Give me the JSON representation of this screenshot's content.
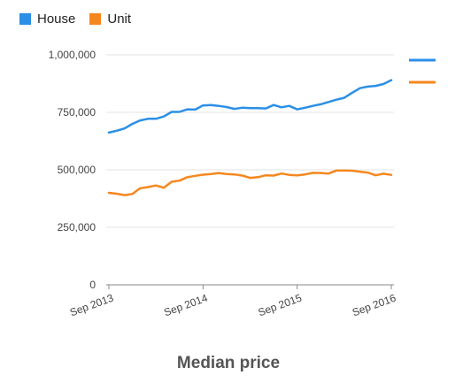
{
  "colors": {
    "house": "#2b8fe6",
    "unit": "#f5871f",
    "grid": "#e3e3e3",
    "axis": "#888888"
  },
  "chart_data": {
    "type": "line",
    "xlabel": "Median price",
    "ylabel": "",
    "ylim": [
      0,
      1000000
    ],
    "y_ticks": [
      0,
      250000,
      500000,
      750000,
      1000000
    ],
    "y_tick_labels": [
      "0",
      "250,000",
      "500,000",
      "750,000",
      "1,000,000"
    ],
    "x_tick_labels": [
      "Sep 2013",
      "Sep 2014",
      "Sep 2015",
      "Sep 2016"
    ],
    "grid": true,
    "legend": {
      "placement": "top-left",
      "entries": [
        "House",
        "Unit"
      ]
    },
    "x": [
      "Sep 2013",
      "Oct 2013",
      "Nov 2013",
      "Dec 2013",
      "Jan 2014",
      "Feb 2014",
      "Mar 2014",
      "Apr 2014",
      "May 2014",
      "Jun 2014",
      "Jul 2014",
      "Aug 2014",
      "Sep 2014",
      "Oct 2014",
      "Nov 2014",
      "Dec 2014",
      "Jan 2015",
      "Feb 2015",
      "Mar 2015",
      "Apr 2015",
      "May 2015",
      "Jun 2015",
      "Jul 2015",
      "Aug 2015",
      "Sep 2015",
      "Oct 2015",
      "Nov 2015",
      "Dec 2015",
      "Jan 2016",
      "Feb 2016",
      "Mar 2016",
      "Apr 2016",
      "May 2016",
      "Jun 2016",
      "Jul 2016",
      "Aug 2016",
      "Sep 2016"
    ],
    "series": [
      {
        "name": "House",
        "values": [
          662000,
          670000,
          680000,
          700000,
          715000,
          722000,
          722000,
          732000,
          752000,
          752000,
          763000,
          762000,
          780000,
          782000,
          778000,
          773000,
          765000,
          770000,
          768000,
          768000,
          767000,
          782000,
          772000,
          778000,
          763000,
          770000,
          778000,
          785000,
          795000,
          805000,
          813000,
          835000,
          855000,
          862000,
          865000,
          873000,
          890000
        ]
      },
      {
        "name": "Unit",
        "values": [
          400000,
          396000,
          390000,
          395000,
          420000,
          425000,
          432000,
          422000,
          448000,
          453000,
          468000,
          474000,
          479000,
          482000,
          486000,
          482000,
          480000,
          475000,
          465000,
          468000,
          476000,
          475000,
          484000,
          478000,
          476000,
          480000,
          487000,
          486000,
          484000,
          497000,
          497000,
          496000,
          492000,
          488000,
          476000,
          483000,
          478000
        ]
      }
    ]
  }
}
